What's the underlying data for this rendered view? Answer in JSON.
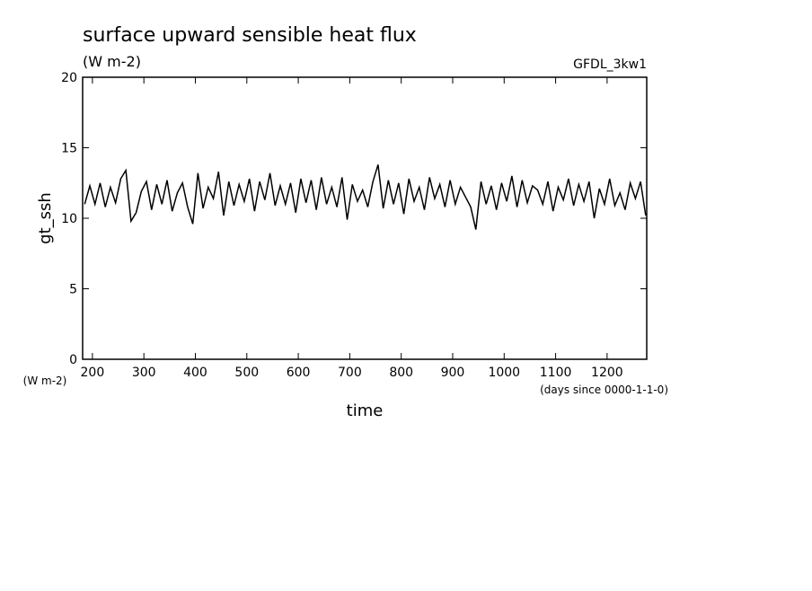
{
  "chart_data": {
    "type": "line",
    "title": "surface upward sensible heat flux",
    "subtitle": "(W m-2)",
    "annotation": "GFDL_3kw1",
    "y_label": "gt_ssh",
    "y_unit": "(W m-2)",
    "x_label": "time",
    "x_unit": "(days since 0000-1-1-0)",
    "xlim": [
      181,
      1277
    ],
    "ylim": [
      0,
      20
    ],
    "xticks": [
      200,
      300,
      400,
      500,
      600,
      700,
      800,
      900,
      1000,
      1100,
      1200
    ],
    "yticks": [
      0,
      5,
      10,
      15,
      20
    ],
    "x": [
      185,
      195,
      205,
      215,
      225,
      235,
      245,
      255,
      265,
      275,
      285,
      295,
      305,
      315,
      325,
      335,
      345,
      355,
      365,
      375,
      385,
      395,
      405,
      415,
      425,
      435,
      445,
      455,
      465,
      475,
      485,
      495,
      505,
      515,
      525,
      535,
      545,
      555,
      565,
      575,
      585,
      595,
      605,
      615,
      625,
      635,
      645,
      655,
      665,
      675,
      685,
      695,
      705,
      715,
      725,
      735,
      745,
      755,
      765,
      775,
      785,
      795,
      805,
      815,
      825,
      835,
      845,
      855,
      865,
      875,
      885,
      895,
      905,
      915,
      925,
      935,
      945,
      955,
      965,
      975,
      985,
      995,
      1005,
      1015,
      1025,
      1035,
      1045,
      1055,
      1065,
      1075,
      1085,
      1095,
      1105,
      1115,
      1125,
      1135,
      1145,
      1155,
      1165,
      1175,
      1185,
      1195,
      1205,
      1215,
      1225,
      1235,
      1245,
      1255,
      1265,
      1275
    ],
    "series": [
      {
        "name": "gt_ssh",
        "color": "#000000",
        "values": [
          11.0,
          12.3,
          11.0,
          12.5,
          10.8,
          12.2,
          11.1,
          12.8,
          13.4,
          9.8,
          10.4,
          11.9,
          12.6,
          10.6,
          12.4,
          11.0,
          12.7,
          10.5,
          11.8,
          12.5,
          10.8,
          9.6,
          13.2,
          10.7,
          12.2,
          11.4,
          13.3,
          10.2,
          12.6,
          10.9,
          12.4,
          11.2,
          12.8,
          10.5,
          12.6,
          11.3,
          13.2,
          10.9,
          12.3,
          11.0,
          12.5,
          10.4,
          12.8,
          11.1,
          12.7,
          10.6,
          12.9,
          11.0,
          12.2,
          10.8,
          12.9,
          9.9,
          12.4,
          11.2,
          12.0,
          10.8,
          12.6,
          13.8,
          10.7,
          12.7,
          11.0,
          12.5,
          10.3,
          12.8,
          11.2,
          12.2,
          10.6,
          12.9,
          11.4,
          12.4,
          10.8,
          12.7,
          11.0,
          12.2,
          11.5,
          10.8,
          9.2,
          12.6,
          11.0,
          12.3,
          10.6,
          12.5,
          11.2,
          13.0,
          10.8,
          12.7,
          11.1,
          12.3,
          12.0,
          11.0,
          12.6,
          10.5,
          12.2,
          11.3,
          12.8,
          10.9,
          12.4,
          11.2,
          12.6,
          10.0,
          12.1,
          11.0,
          12.8,
          10.9,
          11.8,
          10.6,
          12.5,
          11.4,
          12.6,
          10.2
        ]
      }
    ]
  }
}
